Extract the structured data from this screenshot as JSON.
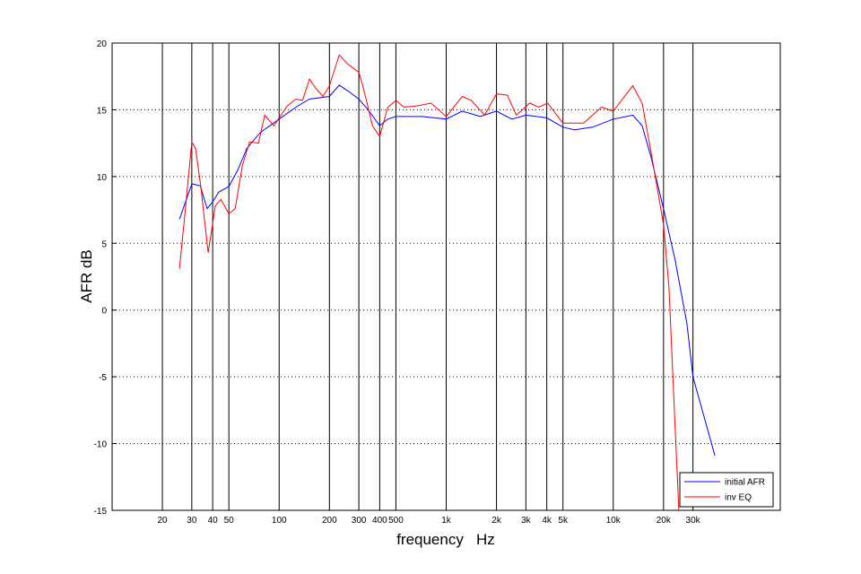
{
  "chart_data": {
    "type": "line",
    "xlabel": "frequency   Hz",
    "ylabel": "AFR dB",
    "xscale": "log",
    "xlim": [
      10,
      100000
    ],
    "ylim": [
      -15,
      20
    ],
    "xticks": [
      20,
      30,
      40,
      50,
      100,
      200,
      300,
      400,
      500,
      {
        "value": 1000,
        "label": "1k"
      },
      {
        "value": 2000,
        "label": "2k"
      },
      {
        "value": 3000,
        "label": "3k"
      },
      {
        "value": 4000,
        "label": "4k"
      },
      {
        "value": 5000,
        "label": "5k"
      },
      {
        "value": 10000,
        "label": "10k"
      },
      {
        "value": 20000,
        "label": "20k"
      },
      {
        "value": 30000,
        "label": "30k"
      }
    ],
    "yticks": [
      -15,
      -10,
      -5,
      0,
      5,
      10,
      15,
      20
    ],
    "grid": true,
    "legend": "lower right",
    "series": [
      {
        "name": "initial AFR",
        "color": "#0000ff",
        "x": [
          25.3,
          30,
          33.7,
          37.1,
          40,
          43.6,
          50,
          56.6,
          64,
          77.1,
          100,
          126,
          152,
          200,
          229,
          266,
          300,
          341,
          400,
          447,
          500,
          716,
          1000,
          1250,
          1600,
          2000,
          2470,
          3000,
          4000,
          5000,
          5870,
          7520,
          10000,
          13100,
          14900,
          16800,
          20000,
          23500,
          27600,
          30000,
          40600
        ],
        "values": [
          6.8,
          9.45,
          9.3,
          7.6,
          8.1,
          8.85,
          9.25,
          10.5,
          12.1,
          13.3,
          14.3,
          15.2,
          15.8,
          16.0,
          16.85,
          16.3,
          15.8,
          15.0,
          13.8,
          14.3,
          14.5,
          14.5,
          14.3,
          14.9,
          14.5,
          14.9,
          14.3,
          14.6,
          14.4,
          13.7,
          13.5,
          13.7,
          14.3,
          14.6,
          13.8,
          11.5,
          7.6,
          3.7,
          -1.0,
          -5.0,
          -10.9
        ]
      },
      {
        "name": "inv EQ",
        "color": "#ff0000",
        "x": [
          25.3,
          26.9,
          30,
          31.6,
          34.1,
          37.6,
          41.5,
          44.8,
          50,
          54.5,
          60.2,
          66.5,
          75.2,
          82,
          92.9,
          112,
          126,
          138,
          152,
          166,
          183,
          200,
          229,
          259,
          300,
          320,
          362,
          400,
          447,
          500,
          559,
          673,
          811,
          1000,
          1250,
          1415,
          1700,
          2000,
          2320,
          2630,
          3160,
          3580,
          4050,
          5000,
          6650,
          8510,
          10000,
          13100,
          14900,
          16800,
          20000,
          21550,
          23500,
          24700
        ],
        "values": [
          3.1,
          6.4,
          12.6,
          12.1,
          9.1,
          4.3,
          7.8,
          8.3,
          7.2,
          7.6,
          10.8,
          12.6,
          12.5,
          14.6,
          13.8,
          15.3,
          15.8,
          15.7,
          17.3,
          16.6,
          16.0,
          16.8,
          19.1,
          18.4,
          17.8,
          16.6,
          13.8,
          13.0,
          15.2,
          15.7,
          15.2,
          15.3,
          15.5,
          14.5,
          16.0,
          15.7,
          14.6,
          16.2,
          16.1,
          14.6,
          15.5,
          15.2,
          15.5,
          14.0,
          14.0,
          15.2,
          14.9,
          16.8,
          15.5,
          11.9,
          6.4,
          1.7,
          -9.0,
          -15.0
        ]
      }
    ]
  }
}
